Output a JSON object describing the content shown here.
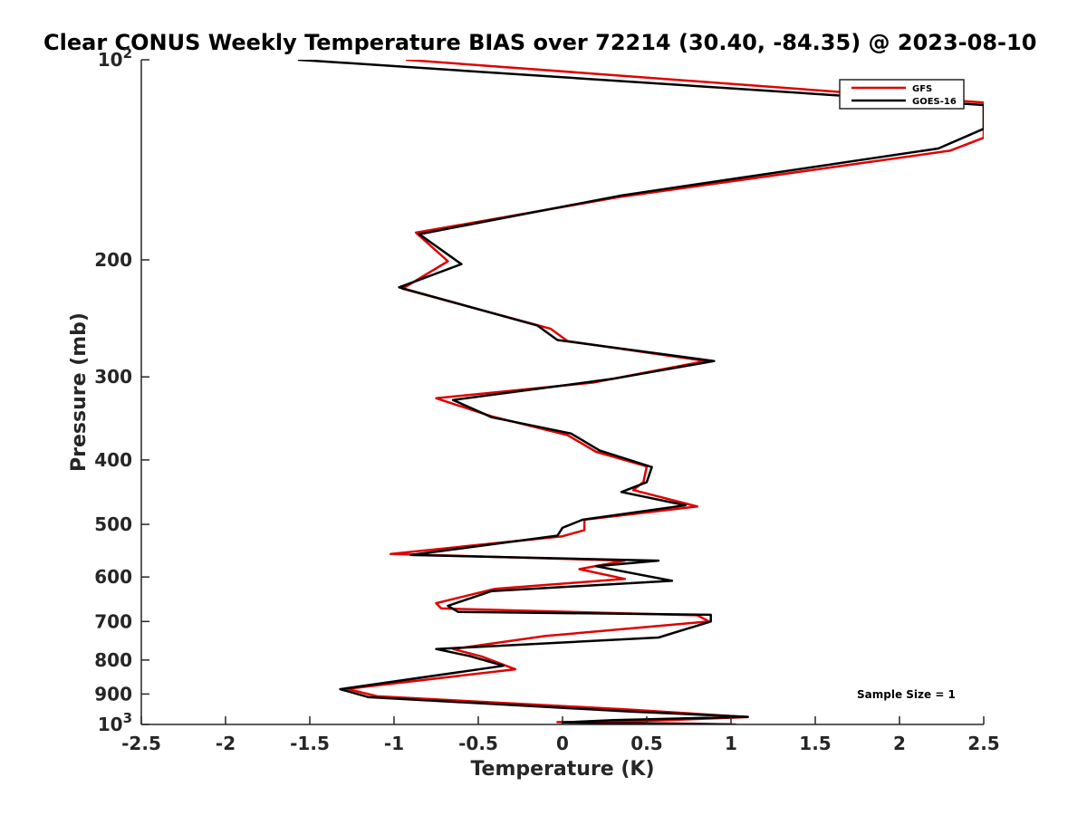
{
  "chart_data": {
    "type": "line",
    "title": "Clear CONUS Weekly Temperature BIAS over 72214 (30.40, -84.35) @ 2023-08-10",
    "xlabel": "Temperature (K)",
    "ylabel": "Pressure (mb)",
    "xlim": [
      -2.5,
      2.5
    ],
    "ylim": [
      100,
      1000
    ],
    "y_scale": "log",
    "y_reversed": true,
    "grid": false,
    "x_ticks": [
      "-2.5",
      "-2",
      "-1.5",
      "-1",
      "-0.5",
      "0",
      "0.5",
      "1",
      "1.5",
      "2",
      "2.5"
    ],
    "y_ticks": [
      {
        "value": 100,
        "base": "10",
        "exp": "2"
      },
      {
        "value": 200,
        "label": "200"
      },
      {
        "value": 300,
        "label": "300"
      },
      {
        "value": 400,
        "label": "400"
      },
      {
        "value": 500,
        "label": "500"
      },
      {
        "value": 600,
        "label": "600"
      },
      {
        "value": 700,
        "label": "700"
      },
      {
        "value": 800,
        "label": "800"
      },
      {
        "value": 900,
        "label": "900"
      },
      {
        "value": 1000,
        "base": "10",
        "exp": "3"
      }
    ],
    "legend_position": "top-right",
    "annotation": "Sample Size = 1",
    "series": [
      {
        "name": "GFS",
        "color": "#e00000",
        "points": [
          [
            -0.93,
            100
          ],
          [
            2.5,
            116
          ],
          [
            2.5,
            131
          ],
          [
            2.3,
            137
          ],
          [
            0.33,
            161
          ],
          [
            -0.87,
            182
          ],
          [
            -0.68,
            201
          ],
          [
            -0.95,
            221
          ],
          [
            -0.07,
            254
          ],
          [
            0.03,
            265
          ],
          [
            0.85,
            284
          ],
          [
            0.18,
            306
          ],
          [
            -0.75,
            323
          ],
          [
            -0.42,
            344
          ],
          [
            0.03,
            367
          ],
          [
            0.2,
            389
          ],
          [
            0.5,
            409
          ],
          [
            0.48,
            432
          ],
          [
            0.42,
            444
          ],
          [
            0.8,
            470
          ],
          [
            0.13,
            492
          ],
          [
            0.13,
            510
          ],
          [
            0.0,
            521
          ],
          [
            -1.02,
            554
          ],
          [
            0.37,
            567
          ],
          [
            0.1,
            584
          ],
          [
            0.37,
            604
          ],
          [
            -0.4,
            625
          ],
          [
            -0.75,
            657
          ],
          [
            -0.72,
            669
          ],
          [
            0.8,
            685
          ],
          [
            0.87,
            700
          ],
          [
            -0.1,
            736
          ],
          [
            -0.65,
            770
          ],
          [
            -0.48,
            790
          ],
          [
            -0.28,
            826
          ],
          [
            -1.28,
            884
          ],
          [
            -1.1,
            907
          ],
          [
            0.4,
            950
          ],
          [
            1.1,
            975
          ],
          [
            0.4,
            990
          ],
          [
            -0.03,
            992
          ],
          [
            0.3,
            993
          ],
          [
            1.03,
            1000
          ]
        ]
      },
      {
        "name": "GOES-16",
        "color": "#000000",
        "points": [
          [
            -1.57,
            100
          ],
          [
            2.5,
            117
          ],
          [
            2.5,
            127
          ],
          [
            2.23,
            136
          ],
          [
            0.35,
            160
          ],
          [
            -0.85,
            183
          ],
          [
            -0.6,
            203
          ],
          [
            -0.97,
            220
          ],
          [
            -0.15,
            251
          ],
          [
            -0.03,
            264
          ],
          [
            0.9,
            284
          ],
          [
            0.3,
            302
          ],
          [
            -0.65,
            325
          ],
          [
            -0.42,
            345
          ],
          [
            0.05,
            365
          ],
          [
            0.22,
            387
          ],
          [
            0.53,
            410
          ],
          [
            0.5,
            432
          ],
          [
            0.35,
            447
          ],
          [
            0.73,
            468
          ],
          [
            0.12,
            492
          ],
          [
            0.0,
            506
          ],
          [
            -0.03,
            520
          ],
          [
            -0.9,
            556
          ],
          [
            0.57,
            567
          ],
          [
            0.2,
            578
          ],
          [
            0.65,
            608
          ],
          [
            -0.42,
            630
          ],
          [
            -0.68,
            663
          ],
          [
            -0.62,
            677
          ],
          [
            0.88,
            684
          ],
          [
            0.88,
            700
          ],
          [
            0.57,
            740
          ],
          [
            -0.75,
            770
          ],
          [
            -0.55,
            789
          ],
          [
            -0.35,
            816
          ],
          [
            -1.32,
            885
          ],
          [
            -1.15,
            910
          ],
          [
            0.4,
            956
          ],
          [
            1.1,
            974
          ],
          [
            0.3,
            985
          ],
          [
            0.0,
            993
          ],
          [
            1.0,
            1000
          ]
        ]
      }
    ]
  }
}
